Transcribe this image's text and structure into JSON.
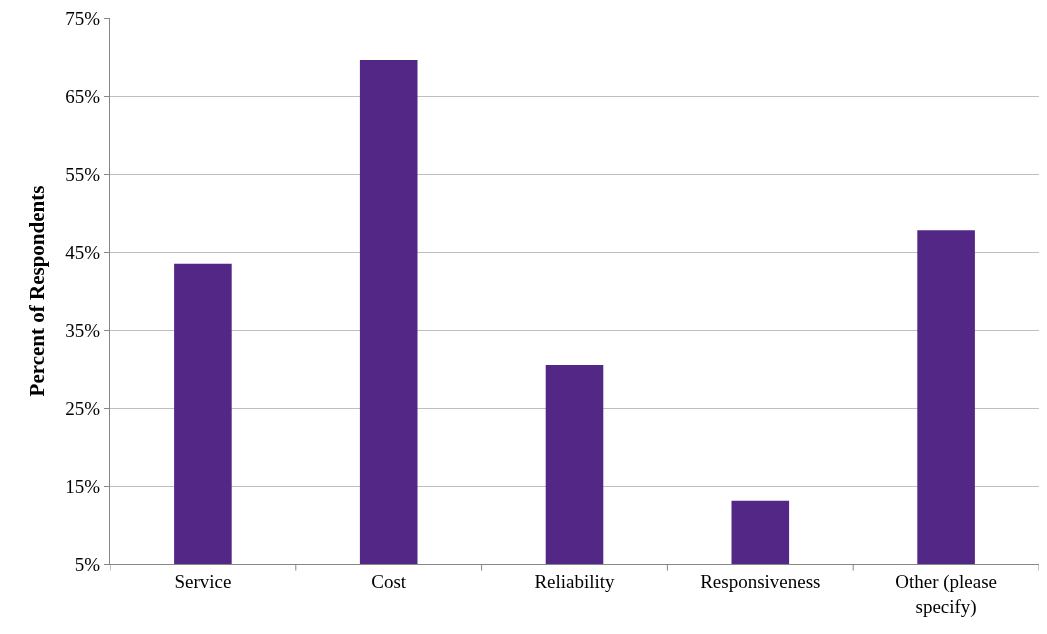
{
  "chart_data": {
    "type": "bar",
    "ylabel": "Percent of Respondents",
    "categories": [
      "Service",
      "Cost",
      "Reliability",
      "Responsiveness",
      "Other (please specify)"
    ],
    "values": [
      43.5,
      69.6,
      30.5,
      13.1,
      47.8
    ],
    "color": "#532785",
    "ylim": [
      5,
      75
    ],
    "yticks": [
      {
        "value": 5,
        "label": "5%"
      },
      {
        "value": 15,
        "label": "15%"
      },
      {
        "value": 25,
        "label": "25%"
      },
      {
        "value": 35,
        "label": "35%"
      },
      {
        "value": 45,
        "label": "45%"
      },
      {
        "value": 55,
        "label": "55%"
      },
      {
        "value": 65,
        "label": "65%"
      },
      {
        "value": 75,
        "label": "75%"
      }
    ],
    "grid": "y"
  }
}
